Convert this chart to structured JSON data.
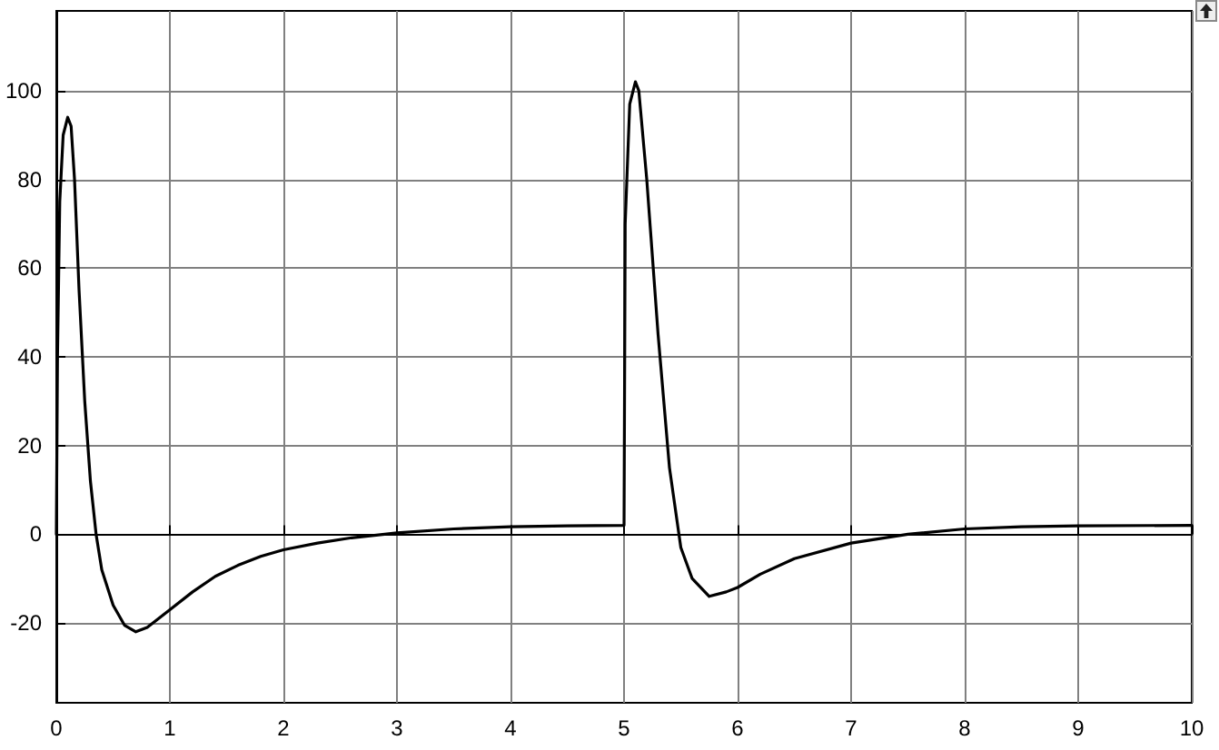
{
  "chart_data": {
    "type": "line",
    "x": [
      0,
      0.01,
      0.03,
      0.06,
      0.1,
      0.13,
      0.16,
      0.2,
      0.25,
      0.3,
      0.35,
      0.4,
      0.5,
      0.6,
      0.7,
      0.8,
      0.9,
      1.0,
      1.2,
      1.4,
      1.6,
      1.8,
      2.0,
      2.3,
      2.6,
      3.0,
      3.5,
      4.0,
      4.5,
      5.0,
      5.01,
      5.05,
      5.1,
      5.13,
      5.2,
      5.3,
      5.4,
      5.5,
      5.6,
      5.75,
      5.9,
      6.0,
      6.2,
      6.5,
      7.0,
      7.5,
      8.0,
      8.5,
      9.0,
      10.0
    ],
    "series": [
      {
        "color": "#000000",
        "values": [
          0,
          40,
          75,
          90,
          94,
          92,
          80,
          55,
          30,
          12,
          0,
          -8,
          -16,
          -20.5,
          -22,
          -21,
          -19,
          -17,
          -13,
          -9.5,
          -7,
          -5,
          -3.5,
          -2,
          -0.8,
          0.3,
          1.2,
          1.7,
          1.9,
          2,
          70,
          97,
          102,
          100,
          80,
          45,
          15,
          -3,
          -10,
          -14,
          -13,
          -12,
          -9,
          -5.5,
          -2,
          0,
          1.2,
          1.7,
          1.9,
          2
        ]
      }
    ],
    "xlim": [
      0,
      10
    ],
    "xticks": [
      0,
      1,
      2,
      3,
      4,
      5,
      6,
      7,
      8,
      9,
      10
    ],
    "ylim": [
      -38,
      118
    ],
    "yticks": [
      -20,
      0,
      20,
      40,
      60,
      80,
      100
    ],
    "grid": true,
    "marker": "none",
    "line_style": "solid"
  }
}
